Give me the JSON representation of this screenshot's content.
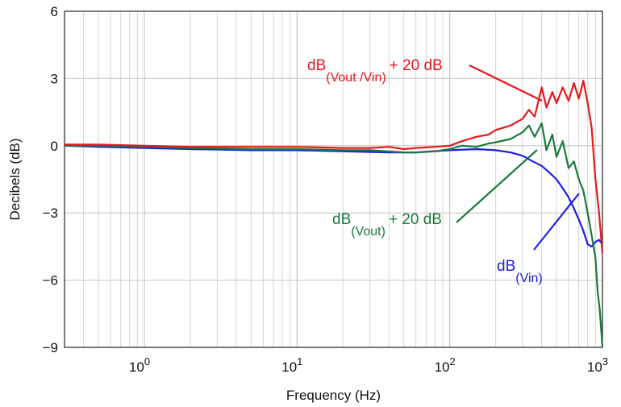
{
  "chart_data": {
    "type": "line",
    "xscale": "log",
    "xlim": [
      0.3,
      1000
    ],
    "ylim": [
      -9,
      6
    ],
    "grid": true,
    "xlabel": "Frequency (Hz)",
    "ylabel": "Decibels (dB)",
    "xticks": [
      {
        "value": 1,
        "base": "10",
        "exp": "0"
      },
      {
        "value": 10,
        "base": "10",
        "exp": "1"
      },
      {
        "value": 100,
        "base": "10",
        "exp": "2"
      },
      {
        "value": 1000,
        "base": "10",
        "exp": "3"
      }
    ],
    "yticks": [
      {
        "value": 6,
        "label": "6"
      },
      {
        "value": 3,
        "label": "3"
      },
      {
        "value": 0,
        "label": "0"
      },
      {
        "value": -3,
        "label": "−3"
      },
      {
        "value": -6,
        "label": "−6"
      },
      {
        "value": -9,
        "label": "−9"
      }
    ],
    "series": [
      {
        "id": "vin",
        "color": "#1e1ee6",
        "x": [
          0.3,
          0.5,
          1,
          2,
          5,
          10,
          20,
          40,
          60,
          100,
          150,
          200,
          250,
          300,
          350,
          400,
          450,
          500,
          550,
          600,
          650,
          700,
          750,
          800,
          850,
          900,
          950,
          1000
        ],
        "y": [
          0.0,
          -0.05,
          -0.1,
          -0.15,
          -0.2,
          -0.2,
          -0.25,
          -0.3,
          -0.3,
          -0.2,
          -0.15,
          -0.2,
          -0.3,
          -0.45,
          -0.7,
          -0.9,
          -1.2,
          -1.5,
          -1.9,
          -2.3,
          -2.8,
          -3.3,
          -3.8,
          -4.4,
          -4.5,
          -4.3,
          -4.2,
          -4.4
        ]
      },
      {
        "id": "vout",
        "color": "#1a7a3c",
        "x": [
          0.3,
          0.5,
          1,
          2,
          5,
          10,
          20,
          30,
          40,
          50,
          60,
          80,
          100,
          120,
          150,
          180,
          200,
          250,
          300,
          330,
          360,
          400,
          430,
          470,
          500,
          550,
          600,
          650,
          700,
          750,
          800,
          850,
          900,
          930,
          960,
          1000
        ],
        "y": [
          0.0,
          0.0,
          -0.05,
          -0.1,
          -0.15,
          -0.15,
          -0.2,
          -0.2,
          -0.25,
          -0.3,
          -0.3,
          -0.25,
          -0.15,
          0.0,
          -0.05,
          0.1,
          0.15,
          0.3,
          0.6,
          0.9,
          0.4,
          1.0,
          -0.2,
          0.5,
          -0.5,
          0.2,
          -1.0,
          -0.7,
          -1.5,
          -2.0,
          -3.0,
          -4.0,
          -5.0,
          -6.5,
          -7.3,
          -9.0
        ]
      },
      {
        "id": "ratio",
        "color": "#e8171c",
        "x": [
          0.3,
          0.5,
          1,
          2,
          5,
          10,
          20,
          30,
          40,
          50,
          60,
          80,
          100,
          120,
          150,
          180,
          200,
          250,
          300,
          330,
          360,
          400,
          430,
          470,
          500,
          550,
          600,
          650,
          700,
          750,
          800,
          850,
          900,
          950,
          1000
        ],
        "y": [
          0.05,
          0.05,
          0.0,
          -0.05,
          -0.05,
          -0.05,
          -0.1,
          -0.1,
          -0.05,
          -0.15,
          -0.1,
          -0.05,
          0.0,
          0.2,
          0.4,
          0.5,
          0.7,
          0.9,
          1.2,
          1.6,
          1.3,
          2.6,
          1.7,
          2.4,
          1.9,
          2.6,
          2.0,
          2.8,
          2.1,
          2.9,
          1.9,
          0.8,
          -1.5,
          -3.0,
          -4.8
        ]
      }
    ],
    "annotations": [
      {
        "id": "ratio",
        "color": "#e8171c",
        "main": "dB",
        "sub": "(Vout /Vin)",
        "suffix": "+ 20 dB"
      },
      {
        "id": "vout",
        "color": "#1a7a3c",
        "main": "dB",
        "sub": "(Vout)",
        "suffix": "+ 20 dB"
      },
      {
        "id": "vin",
        "color": "#1e1ee6",
        "main": "dB",
        "sub": "(Vin)",
        "suffix": ""
      }
    ]
  }
}
